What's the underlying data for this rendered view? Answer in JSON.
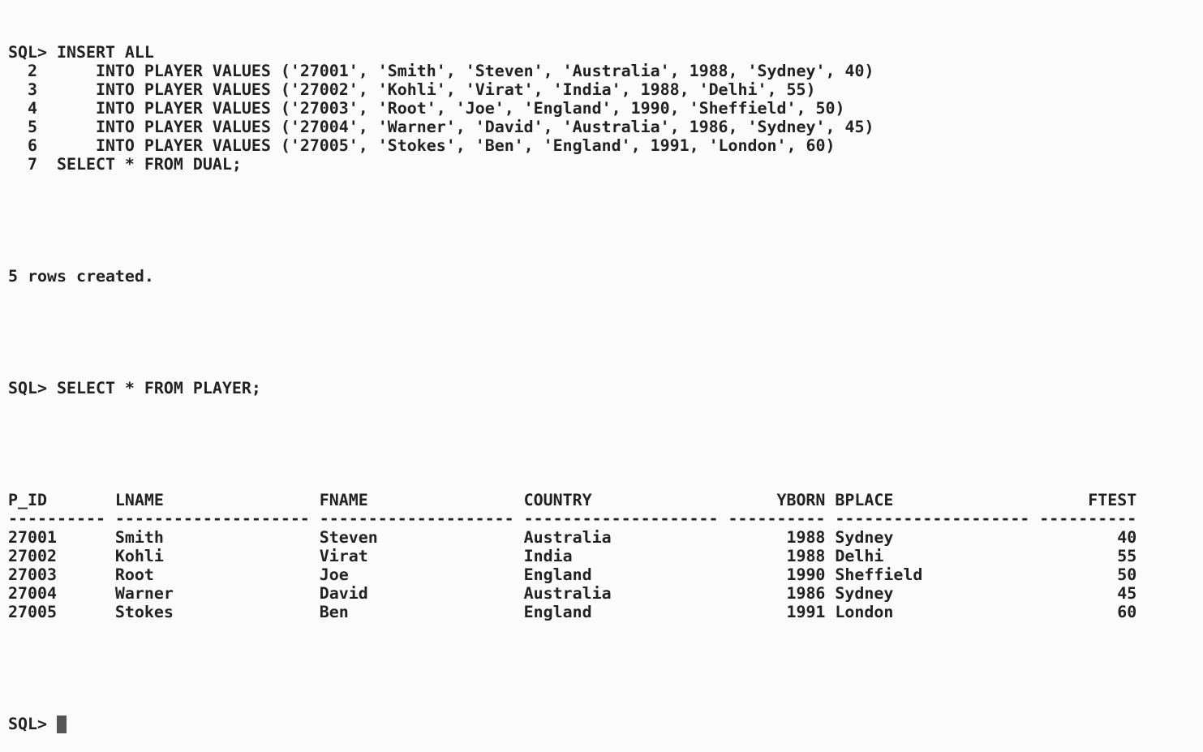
{
  "session": {
    "command1": [
      "SQL> INSERT ALL",
      "  2      INTO PLAYER VALUES ('27001', 'Smith', 'Steven', 'Australia', 1988, 'Sydney', 40)",
      "  3      INTO PLAYER VALUES ('27002', 'Kohli', 'Virat', 'India', 1988, 'Delhi', 55)",
      "  4      INTO PLAYER VALUES ('27003', 'Root', 'Joe', 'England', 1990, 'Sheffield', 50)",
      "  5      INTO PLAYER VALUES ('27004', 'Warner', 'David', 'Australia', 1986, 'Sydney', 45)",
      "  6      INTO PLAYER VALUES ('27005', 'Stokes', 'Ben', 'England', 1991, 'London', 60)",
      "  7  SELECT * FROM DUAL;"
    ],
    "feedback": "5 rows created.",
    "command2": "SQL> SELECT * FROM PLAYER;",
    "table": {
      "columns": [
        "P_ID",
        "LNAME",
        "FNAME",
        "COUNTRY",
        "YBORN",
        "BPLACE",
        "FTEST"
      ],
      "separators": [
        "----------",
        "--------------------",
        "--------------------",
        "--------------------",
        "----------",
        "--------------------",
        "----------"
      ],
      "rows": [
        [
          "27001",
          "Smith",
          "Steven",
          "Australia",
          1988,
          "Sydney",
          40
        ],
        [
          "27002",
          "Kohli",
          "Virat",
          "India",
          1988,
          "Delhi",
          55
        ],
        [
          "27003",
          "Root",
          "Joe",
          "England",
          1990,
          "Sheffield",
          50
        ],
        [
          "27004",
          "Warner",
          "David",
          "Australia",
          1986,
          "Sydney",
          45
        ],
        [
          "27005",
          "Stokes",
          "Ben",
          "England",
          1991,
          "London",
          60
        ]
      ]
    },
    "prompt": "SQL>"
  }
}
